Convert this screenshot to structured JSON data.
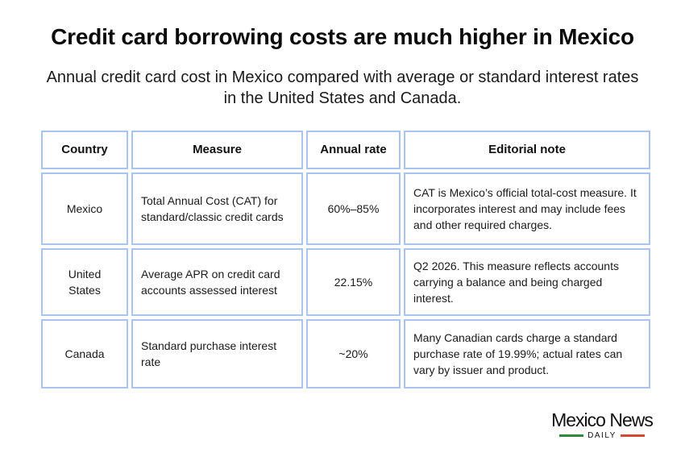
{
  "title": "Credit card borrowing costs are much higher in Mexico",
  "subtitle": "Annual credit card cost in Mexico compared with average or standard interest rates in the United States and Canada.",
  "table": {
    "headers": [
      "Country",
      "Measure",
      "Annual rate",
      "Editorial note"
    ],
    "rows": [
      {
        "country": "Mexico",
        "measure": "Total Annual Cost (CAT) for standard/classic credit cards",
        "rate": "60%–85%",
        "note": "CAT is Mexico’s official total-cost measure. It incorporates interest and may include fees and other required charges."
      },
      {
        "country": "United States",
        "measure": "Average APR on credit card accounts assessed interest",
        "rate": "22.15%",
        "note": "Q2 2026. This measure reflects accounts carrying a balance and being charged interest."
      },
      {
        "country": "Canada",
        "measure": "Standard purchase interest rate",
        "rate": "~20%",
        "note": "Many Canadian cards charge a standard purchase rate of 19.99%; actual rates can vary by issuer and product."
      }
    ]
  },
  "logo": {
    "name": "Mexico News",
    "sub": "DAILY",
    "colors": {
      "green": "#2e8b3e",
      "red": "#d9462f"
    }
  },
  "colors": {
    "cell_border": "#aac3ef"
  }
}
